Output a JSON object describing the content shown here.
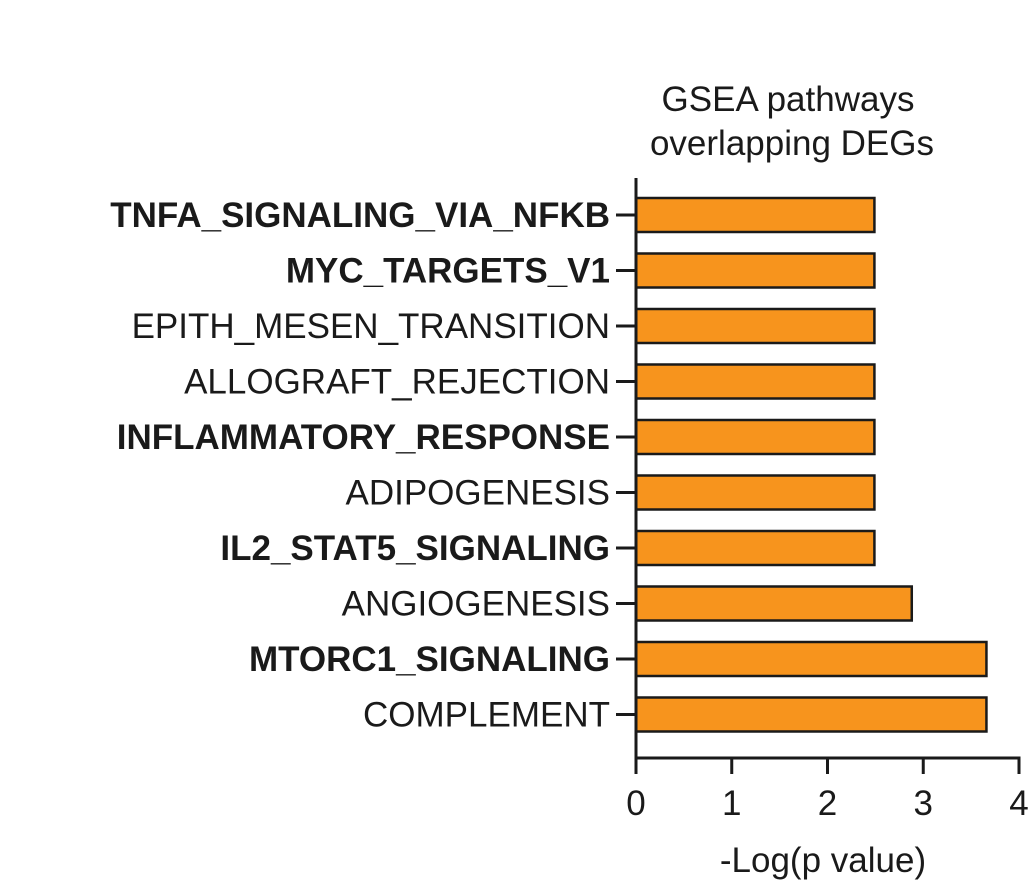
{
  "chart_data": {
    "type": "bar",
    "orientation": "horizontal",
    "title": "GSEA pathways overlapping DEGs",
    "title_lines": [
      "GSEA pathways",
      "overlapping DEGs"
    ],
    "xlabel": "-Log(p value)",
    "ylabel": "",
    "xlim": [
      0,
      4
    ],
    "xticks": [
      "0",
      "1",
      "2",
      "3",
      "4"
    ],
    "grid": false,
    "bar_color": "#F7941D",
    "categories": [
      "TNFA_SIGNALING_VIA_NFKB",
      "MYC_TARGETS_V1",
      "EPITH_MESEN_TRANSITION",
      "ALLOGRAFT_REJECTION",
      "INFLAMMATORY_RESPONSE",
      "ADIPOGENESIS",
      "IL2_STAT5_SIGNALING",
      "ANGIOGENESIS",
      "MTORC1_SIGNALING",
      "COMPLEMENT"
    ],
    "bold_categories": [
      true,
      true,
      false,
      false,
      true,
      false,
      true,
      false,
      true,
      false
    ],
    "values": [
      2.49,
      2.49,
      2.49,
      2.49,
      2.49,
      2.49,
      2.49,
      2.88,
      3.66,
      3.66
    ]
  }
}
